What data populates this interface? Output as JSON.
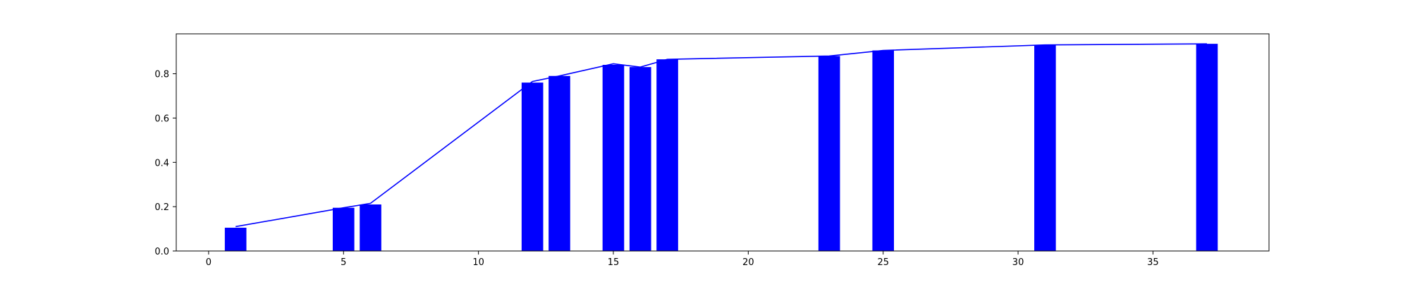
{
  "chart_data": {
    "type": "bar",
    "title": "",
    "xlabel": "",
    "ylabel": "",
    "xlim": [
      -1.2,
      39.3
    ],
    "ylim": [
      0,
      0.98
    ],
    "x_ticks": [
      0,
      5,
      10,
      15,
      20,
      25,
      30,
      35
    ],
    "y_ticks": [
      0.0,
      0.2,
      0.4,
      0.6,
      0.8
    ],
    "y_tick_format": 1,
    "grid": false,
    "legend": "none",
    "bar_width": 0.8,
    "colors": {
      "bar": "#0000ff",
      "line": "#0000ff"
    },
    "x": [
      1,
      5,
      6,
      12,
      13,
      15,
      16,
      17,
      23,
      25,
      31,
      37
    ],
    "values": [
      0.105,
      0.195,
      0.21,
      0.76,
      0.79,
      0.84,
      0.83,
      0.865,
      0.88,
      0.905,
      0.93,
      0.935
    ],
    "line": {
      "x": [
        1,
        5,
        6,
        12,
        13,
        15,
        16,
        17,
        23,
        25,
        31,
        37
      ],
      "y": [
        0.11,
        0.195,
        0.215,
        0.765,
        0.79,
        0.845,
        0.83,
        0.865,
        0.88,
        0.905,
        0.93,
        0.935
      ]
    }
  }
}
